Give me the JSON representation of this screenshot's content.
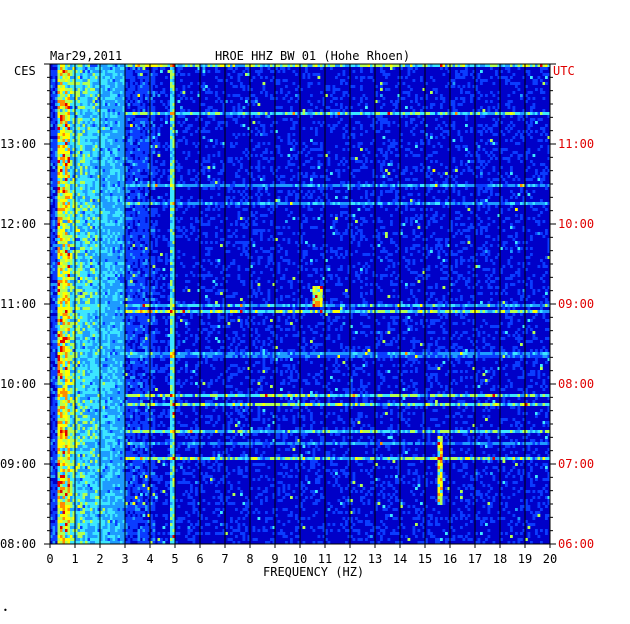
{
  "chart_data": {
    "type": "heatmap",
    "date": "Mar29,2011",
    "title": "HROE HHZ BW 01 (Hohe Rhoen)",
    "xlabel": "FREQUENCY (HZ)",
    "x_ticks": [
      "0",
      "1",
      "2",
      "3",
      "4",
      "5",
      "6",
      "7",
      "8",
      "9",
      "10",
      "11",
      "12",
      "13",
      "14",
      "15",
      "16",
      "17",
      "18",
      "19",
      "20"
    ],
    "xlim": [
      0,
      20
    ],
    "left_axis_label": "CES",
    "right_axis_label": "UTC",
    "left_time_ticks": [
      "13:00",
      "12:00",
      "11:00",
      "10:00",
      "09:00",
      "08:00"
    ],
    "right_time_ticks": [
      "11:00",
      "10:00",
      "09:00",
      "08:00",
      "07:00",
      "06:00"
    ],
    "time_range_local": [
      "08:00",
      "14:00"
    ],
    "colormap": [
      "#00007a",
      "#0000c8",
      "#0a3cff",
      "#1e9bff",
      "#3ce6ff",
      "#b4ff50",
      "#ffff00",
      "#ff8c00",
      "#e00000"
    ],
    "features": [
      {
        "kind": "energy-band",
        "freq_range": [
          0.3,
          3.0
        ],
        "level": "high"
      },
      {
        "kind": "persistent-line",
        "freq": 4.9,
        "level": "medium"
      },
      {
        "kind": "tremor-line",
        "freq": 15.6,
        "time_range_local": [
          "08:30",
          "09:20"
        ],
        "level": "high"
      },
      {
        "kind": "noise-burst",
        "freq": 10.7,
        "time_local": "11:05",
        "level": "high"
      }
    ]
  },
  "footer_mark": "•"
}
